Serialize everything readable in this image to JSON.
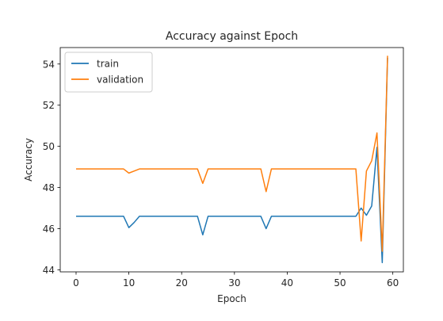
{
  "chart_data": {
    "type": "line",
    "title": "Accuracy against Epoch",
    "xlabel": "Epoch",
    "ylabel": "Accuracy",
    "xlim": [
      -3,
      62
    ],
    "ylim": [
      43.9,
      54.8
    ],
    "xticks": [
      0,
      10,
      20,
      30,
      40,
      50,
      60
    ],
    "yticks": [
      44,
      46,
      48,
      50,
      52,
      54
    ],
    "grid": false,
    "legend_position": "top-left",
    "x": [
      0,
      1,
      2,
      3,
      4,
      5,
      6,
      7,
      8,
      9,
      10,
      11,
      12,
      13,
      14,
      15,
      16,
      17,
      18,
      19,
      20,
      21,
      22,
      23,
      24,
      25,
      26,
      27,
      28,
      29,
      30,
      31,
      32,
      33,
      34,
      35,
      36,
      37,
      38,
      39,
      40,
      41,
      42,
      43,
      44,
      45,
      46,
      47,
      48,
      49,
      50,
      51,
      52,
      53,
      54,
      55,
      56,
      57,
      58,
      59
    ],
    "series": [
      {
        "name": "train",
        "color": "#1f77b4",
        "values": [
          46.6,
          46.6,
          46.6,
          46.6,
          46.6,
          46.6,
          46.6,
          46.6,
          46.6,
          46.6,
          46.05,
          46.3,
          46.6,
          46.6,
          46.6,
          46.6,
          46.6,
          46.6,
          46.6,
          46.6,
          46.6,
          46.6,
          46.6,
          46.6,
          45.7,
          46.6,
          46.6,
          46.6,
          46.6,
          46.6,
          46.6,
          46.6,
          46.6,
          46.6,
          46.6,
          46.6,
          46.0,
          46.6,
          46.6,
          46.6,
          46.6,
          46.6,
          46.6,
          46.6,
          46.6,
          46.6,
          46.6,
          46.6,
          46.6,
          46.6,
          46.6,
          46.6,
          46.6,
          46.6,
          47.0,
          46.65,
          47.1,
          49.95,
          44.35,
          54.3
        ]
      },
      {
        "name": "validation",
        "color": "#ff7f0e",
        "values": [
          48.9,
          48.9,
          48.9,
          48.9,
          48.9,
          48.9,
          48.9,
          48.9,
          48.9,
          48.9,
          48.7,
          48.8,
          48.9,
          48.9,
          48.9,
          48.9,
          48.9,
          48.9,
          48.9,
          48.9,
          48.9,
          48.9,
          48.9,
          48.9,
          48.2,
          48.9,
          48.9,
          48.9,
          48.9,
          48.9,
          48.9,
          48.9,
          48.9,
          48.9,
          48.9,
          48.9,
          47.8,
          48.9,
          48.9,
          48.9,
          48.9,
          48.9,
          48.9,
          48.9,
          48.9,
          48.9,
          48.9,
          48.9,
          48.9,
          48.9,
          48.9,
          48.9,
          48.9,
          48.9,
          45.4,
          48.8,
          49.3,
          50.65,
          44.9,
          54.4
        ]
      }
    ]
  }
}
